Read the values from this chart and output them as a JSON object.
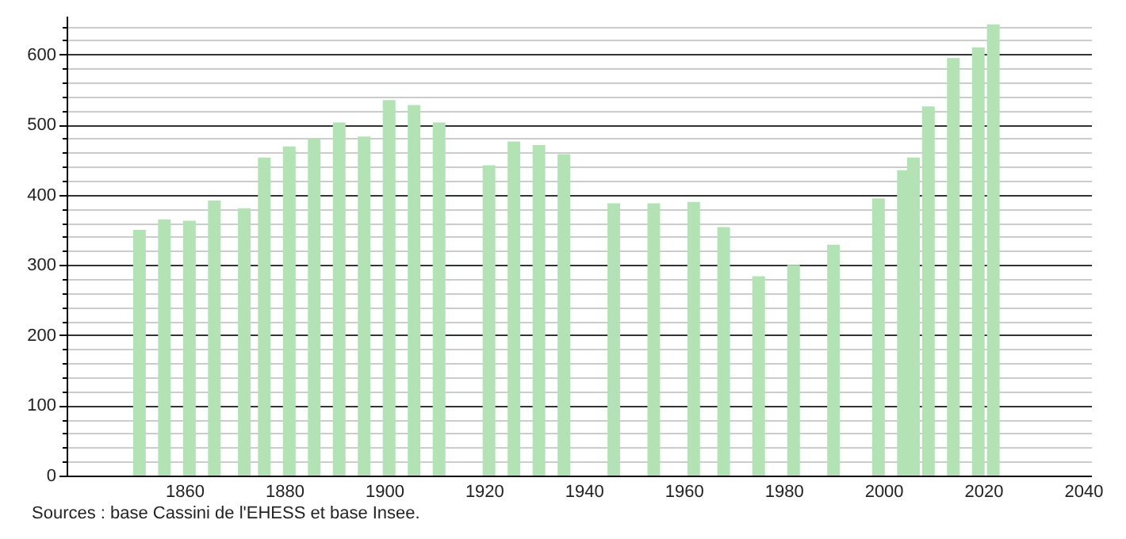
{
  "chart_data": {
    "type": "bar",
    "x": [
      1851,
      1856,
      1861,
      1866,
      1872,
      1876,
      1881,
      1886,
      1891,
      1896,
      1901,
      1906,
      1911,
      1921,
      1926,
      1931,
      1936,
      1946,
      1954,
      1962,
      1968,
      1975,
      1982,
      1990,
      1999,
      2004,
      2006,
      2009,
      2014,
      2019,
      2022
    ],
    "values": [
      350,
      365,
      363,
      392,
      381,
      453,
      469,
      480,
      503,
      483,
      535,
      528,
      503,
      442,
      476,
      471,
      458,
      388,
      388,
      390,
      354,
      284,
      300,
      329,
      395,
      435,
      453,
      526,
      595,
      610,
      643
    ],
    "color": "#b3e3b5",
    "xlim": [
      1838,
      2040
    ],
    "xticks": [
      1860,
      1880,
      1900,
      1920,
      1940,
      1960,
      1980,
      2000,
      2020,
      2040
    ],
    "ylim": [
      0,
      655
    ],
    "yticks": [
      0,
      {
        "value": 20,
        "label": null
      },
      {
        "value": 40,
        "label": null
      },
      {
        "value": 60,
        "label": null
      },
      {
        "value": 80,
        "label": null
      },
      100,
      {
        "value": 120,
        "label": null
      },
      {
        "value": 140,
        "label": null
      },
      {
        "value": 160,
        "label": null
      },
      {
        "value": 180,
        "label": null
      },
      200,
      {
        "value": 220,
        "label": null
      },
      {
        "value": 240,
        "label": null
      },
      {
        "value": 260,
        "label": null
      },
      {
        "value": 280,
        "label": null
      },
      300,
      {
        "value": 320,
        "label": null
      },
      {
        "value": 340,
        "label": null
      },
      {
        "value": 360,
        "label": null
      },
      {
        "value": 380,
        "label": null
      },
      400,
      {
        "value": 420,
        "label": null
      },
      {
        "value": 440,
        "label": null
      },
      {
        "value": 460,
        "label": null
      },
      {
        "value": 480,
        "label": null
      },
      500,
      {
        "value": 520,
        "label": null
      },
      {
        "value": 540,
        "label": null
      },
      {
        "value": 560,
        "label": null
      },
      {
        "value": 580,
        "label": null
      },
      600,
      {
        "value": 620,
        "label": null
      },
      {
        "value": 640,
        "label": null
      }
    ],
    "grid": "y",
    "annotations": [
      "Sources : base Cassini de l'EHESS et base Insee."
    ]
  }
}
